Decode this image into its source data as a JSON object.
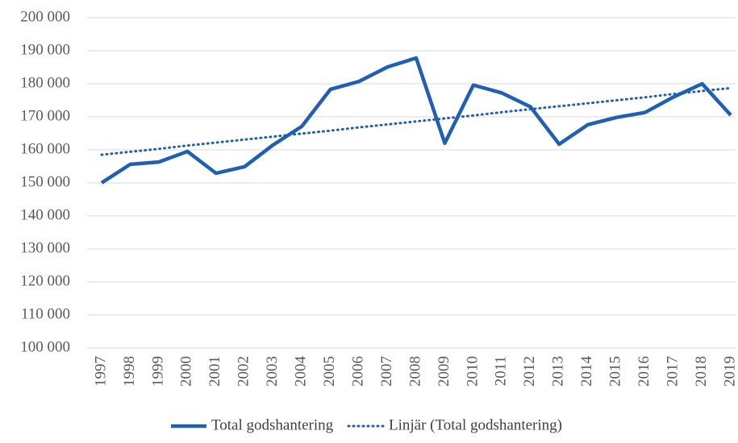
{
  "chart_data": {
    "type": "line",
    "categories": [
      "1997",
      "1998",
      "1999",
      "2000",
      "2001",
      "2002",
      "2003",
      "2004",
      "2005",
      "2006",
      "2007",
      "2008",
      "2009",
      "2010",
      "2011",
      "2012",
      "2013",
      "2014",
      "2015",
      "2016",
      "2017",
      "2018",
      "2019"
    ],
    "series": [
      {
        "name": "Total godshantering",
        "color": "#1f5fb4",
        "style": "solid",
        "values": [
          150000,
          155600,
          156300,
          159500,
          152900,
          154900,
          161500,
          167100,
          178300,
          180700,
          185100,
          187800,
          162000,
          179600,
          177200,
          173000,
          161700,
          167600,
          169800,
          171300,
          176000,
          180000,
          170500
        ]
      },
      {
        "name": "Linjär (Total godshantering)",
        "color": "#1f5fb4",
        "style": "dotted",
        "values": [
          158500,
          159400,
          160300,
          161300,
          162200,
          163100,
          164000,
          164900,
          165800,
          166800,
          167700,
          168600,
          169500,
          170400,
          171400,
          172300,
          173200,
          174100,
          175000,
          175900,
          176900,
          177800,
          178700
        ]
      }
    ],
    "ylim": [
      100000,
      200000
    ],
    "yticks": [
      {
        "value": 100000,
        "label": "100 000"
      },
      {
        "value": 110000,
        "label": "110 000"
      },
      {
        "value": 120000,
        "label": "120 000"
      },
      {
        "value": 130000,
        "label": "130 000"
      },
      {
        "value": 140000,
        "label": "140 000"
      },
      {
        "value": 150000,
        "label": "150 000"
      },
      {
        "value": 160000,
        "label": "160 000"
      },
      {
        "value": 170000,
        "label": "170 000"
      },
      {
        "value": 180000,
        "label": "180 000"
      },
      {
        "value": 190000,
        "label": "190 000"
      },
      {
        "value": 200000,
        "label": "200 000"
      }
    ],
    "grid": true,
    "legend": "bottom"
  }
}
